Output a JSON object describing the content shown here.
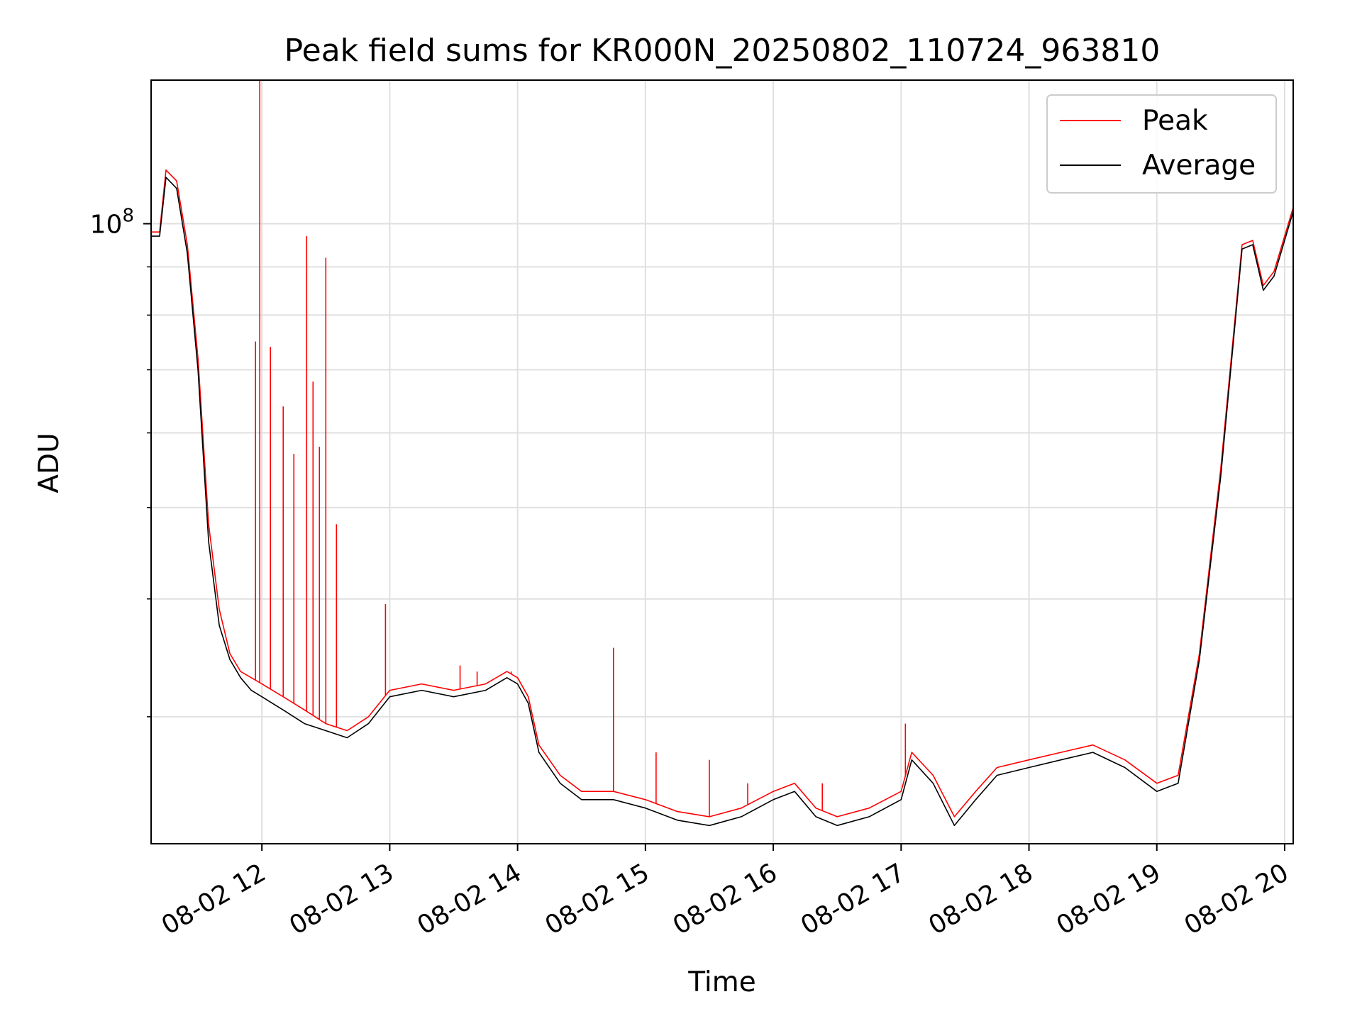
{
  "chart_data": {
    "type": "line",
    "title": "Peak field sums for KR000N_20250802_110724_963810",
    "xlabel": "Time",
    "ylabel": "ADU",
    "y_scale": "log",
    "y_tick_label": "10^8",
    "y_tick_label_base": "10",
    "y_tick_label_exp": "8",
    "ylim": [
      22000000,
      142000000
    ],
    "xlim": [
      "2025-08-02 11:08",
      "2025-08-02 20:04"
    ],
    "x_ticks": [
      "08-02 12",
      "08-02 13",
      "08-02 14",
      "08-02 15",
      "08-02 16",
      "08-02 17",
      "08-02 18",
      "08-02 19",
      "08-02 20"
    ],
    "grid": true,
    "legend_position": "top-right",
    "series": [
      {
        "name": "Peak",
        "color": "#ff0000",
        "x": [
          "2025-08-02 11:08",
          "2025-08-02 11:12",
          "2025-08-02 11:15",
          "2025-08-02 11:20",
          "2025-08-02 11:25",
          "2025-08-02 11:30",
          "2025-08-02 11:35",
          "2025-08-02 11:40",
          "2025-08-02 11:45",
          "2025-08-02 11:50",
          "2025-08-02 11:55",
          "2025-08-02 12:00",
          "2025-08-02 12:10",
          "2025-08-02 12:20",
          "2025-08-02 12:30",
          "2025-08-02 12:40",
          "2025-08-02 12:50",
          "2025-08-02 13:00",
          "2025-08-02 13:15",
          "2025-08-02 13:30",
          "2025-08-02 13:45",
          "2025-08-02 13:55",
          "2025-08-02 14:00",
          "2025-08-02 14:05",
          "2025-08-02 14:10",
          "2025-08-02 14:20",
          "2025-08-02 14:30",
          "2025-08-02 14:45",
          "2025-08-02 15:00",
          "2025-08-02 15:15",
          "2025-08-02 15:30",
          "2025-08-02 15:45",
          "2025-08-02 16:00",
          "2025-08-02 16:10",
          "2025-08-02 16:20",
          "2025-08-02 16:30",
          "2025-08-02 16:45",
          "2025-08-02 17:00",
          "2025-08-02 17:05",
          "2025-08-02 17:15",
          "2025-08-02 17:25",
          "2025-08-02 17:35",
          "2025-08-02 17:45",
          "2025-08-02 18:00",
          "2025-08-02 18:15",
          "2025-08-02 18:30",
          "2025-08-02 18:45",
          "2025-08-02 19:00",
          "2025-08-02 19:10",
          "2025-08-02 19:20",
          "2025-08-02 19:30",
          "2025-08-02 19:40",
          "2025-08-02 19:45",
          "2025-08-02 19:50",
          "2025-08-02 19:55",
          "2025-08-02 20:04"
        ],
        "y": [
          98000000,
          98000000,
          114000000,
          111000000,
          95000000,
          72000000,
          48000000,
          39000000,
          35000000,
          33500000,
          33000000,
          32500000,
          31500000,
          30500000,
          29500000,
          29000000,
          30000000,
          32000000,
          32500000,
          32000000,
          32500000,
          33500000,
          33000000,
          31500000,
          28000000,
          26000000,
          25000000,
          25000000,
          24500000,
          23800000,
          23500000,
          24000000,
          25000000,
          25500000,
          24000000,
          23500000,
          24000000,
          25000000,
          27500000,
          26000000,
          23500000,
          25000000,
          26500000,
          27000000,
          27500000,
          28000000,
          27000000,
          25500000,
          26000000,
          35000000,
          55000000,
          95000000,
          96000000,
          86000000,
          89000000,
          104000000
        ],
        "spikes": [
          {
            "x": "2025-08-02 11:59",
            "y": 142000000
          },
          {
            "x": "2025-08-02 11:57",
            "y": 75000000
          },
          {
            "x": "2025-08-02 12:04",
            "y": 74000000
          },
          {
            "x": "2025-08-02 12:10",
            "y": 64000000
          },
          {
            "x": "2025-08-02 12:15",
            "y": 57000000
          },
          {
            "x": "2025-08-02 12:21",
            "y": 97000000
          },
          {
            "x": "2025-08-02 12:24",
            "y": 68000000
          },
          {
            "x": "2025-08-02 12:27",
            "y": 58000000
          },
          {
            "x": "2025-08-02 12:30",
            "y": 92000000
          },
          {
            "x": "2025-08-02 12:35",
            "y": 48000000
          },
          {
            "x": "2025-08-02 12:58",
            "y": 39500000
          },
          {
            "x": "2025-08-02 13:33",
            "y": 34000000
          },
          {
            "x": "2025-08-02 13:41",
            "y": 33500000
          },
          {
            "x": "2025-08-02 13:57",
            "y": 33500000
          },
          {
            "x": "2025-08-02 14:45",
            "y": 35500000
          },
          {
            "x": "2025-08-02 15:05",
            "y": 27500000
          },
          {
            "x": "2025-08-02 15:30",
            "y": 27000000
          },
          {
            "x": "2025-08-02 15:48",
            "y": 25500000
          },
          {
            "x": "2025-08-02 16:23",
            "y": 25500000
          },
          {
            "x": "2025-08-02 17:02",
            "y": 29500000
          }
        ]
      },
      {
        "name": "Average",
        "color": "#000000",
        "x": [
          "2025-08-02 11:08",
          "2025-08-02 11:12",
          "2025-08-02 11:15",
          "2025-08-02 11:20",
          "2025-08-02 11:25",
          "2025-08-02 11:30",
          "2025-08-02 11:35",
          "2025-08-02 11:40",
          "2025-08-02 11:45",
          "2025-08-02 11:50",
          "2025-08-02 11:55",
          "2025-08-02 12:00",
          "2025-08-02 12:10",
          "2025-08-02 12:20",
          "2025-08-02 12:30",
          "2025-08-02 12:40",
          "2025-08-02 12:50",
          "2025-08-02 13:00",
          "2025-08-02 13:15",
          "2025-08-02 13:30",
          "2025-08-02 13:45",
          "2025-08-02 13:55",
          "2025-08-02 14:00",
          "2025-08-02 14:05",
          "2025-08-02 14:10",
          "2025-08-02 14:20",
          "2025-08-02 14:30",
          "2025-08-02 14:45",
          "2025-08-02 15:00",
          "2025-08-02 15:15",
          "2025-08-02 15:30",
          "2025-08-02 15:45",
          "2025-08-02 16:00",
          "2025-08-02 16:10",
          "2025-08-02 16:20",
          "2025-08-02 16:30",
          "2025-08-02 16:45",
          "2025-08-02 17:00",
          "2025-08-02 17:05",
          "2025-08-02 17:15",
          "2025-08-02 17:25",
          "2025-08-02 17:35",
          "2025-08-02 17:45",
          "2025-08-02 18:00",
          "2025-08-02 18:15",
          "2025-08-02 18:30",
          "2025-08-02 18:45",
          "2025-08-02 19:00",
          "2025-08-02 19:10",
          "2025-08-02 19:20",
          "2025-08-02 19:30",
          "2025-08-02 19:40",
          "2025-08-02 19:45",
          "2025-08-02 19:50",
          "2025-08-02 19:55",
          "2025-08-02 20:04"
        ],
        "y": [
          97000000,
          97000000,
          112000000,
          109000000,
          93000000,
          70000000,
          46000000,
          37500000,
          34500000,
          33000000,
          32000000,
          31500000,
          30500000,
          29500000,
          29000000,
          28500000,
          29500000,
          31500000,
          32000000,
          31500000,
          32000000,
          33000000,
          32500000,
          31000000,
          27500000,
          25500000,
          24500000,
          24500000,
          24000000,
          23300000,
          23000000,
          23500000,
          24500000,
          25000000,
          23500000,
          23000000,
          23500000,
          24500000,
          27000000,
          25500000,
          23000000,
          24500000,
          26000000,
          26500000,
          27000000,
          27500000,
          26500000,
          25000000,
          25500000,
          34500000,
          54000000,
          94000000,
          95000000,
          85000000,
          88000000,
          103000000
        ]
      }
    ]
  }
}
